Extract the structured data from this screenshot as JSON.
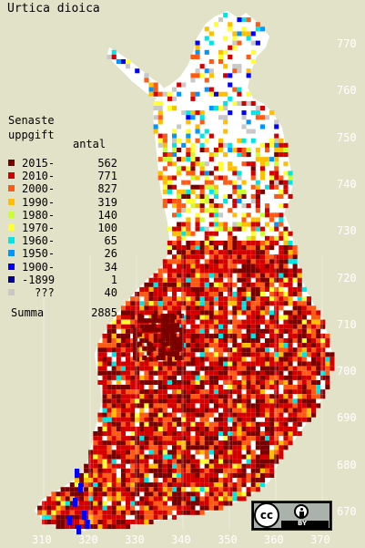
{
  "title": "Urtica dioica",
  "legend": {
    "heading_line1": "Senaste",
    "heading_line2": "uppgift",
    "count_header": "antal",
    "items": [
      {
        "label": "2015-",
        "count": "562",
        "color": "#7a0000"
      },
      {
        "label": "2010-",
        "count": "771",
        "color": "#d40000"
      },
      {
        "label": "2000-",
        "count": "827",
        "color": "#ff5a14"
      },
      {
        "label": "1990-",
        "count": "319",
        "color": "#ffbe00"
      },
      {
        "label": "1980-",
        "count": "140",
        "color": "#c8ff32"
      },
      {
        "label": "1970-",
        "count": "100",
        "color": "#ffff32"
      },
      {
        "label": "1960-",
        "count": "65",
        "color": "#00e6e6"
      },
      {
        "label": "1950-",
        "count": "26",
        "color": "#0096ff"
      },
      {
        "label": "1900-",
        "count": "34",
        "color": "#0000ff"
      },
      {
        "label": "-1899",
        "count": "1",
        "color": "#000096"
      },
      {
        "label": "???",
        "count": "40",
        "color": "#c8c8c8"
      }
    ],
    "sum_label": "Summa",
    "sum_count": "2885"
  },
  "y_ticks": [
    "770",
    "760",
    "750",
    "740",
    "730",
    "720",
    "710",
    "700",
    "690",
    "680",
    "670"
  ],
  "x_ticks": [
    "310",
    "320",
    "330",
    "340",
    "350",
    "360",
    "370"
  ],
  "license": {
    "cc": "cc",
    "by": "BY"
  },
  "colors": {
    "background": "#e2e2c8",
    "land": "#ffffff",
    "grid": "#ffffff",
    "tick_text": "#ffffff"
  }
}
